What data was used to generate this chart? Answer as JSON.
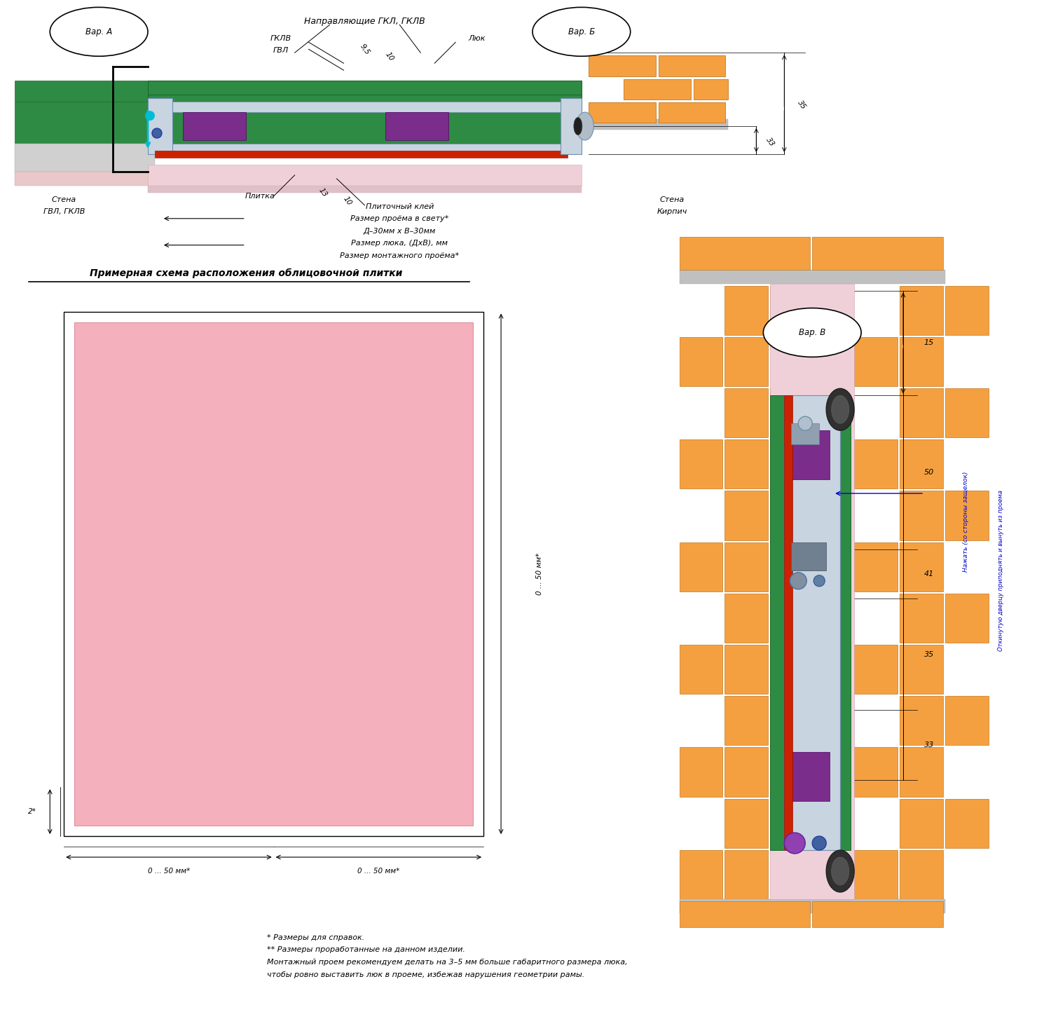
{
  "bg_color": "#ffffff",
  "title_text": "Примерная схема расположения облицовочной плитки",
  "var_A": "Вар. А",
  "var_B": "Вар. Б",
  "var_V": "Вар. В",
  "label_napravl": "Направляющие ГКЛ, ГКЛВ",
  "label_gklv": "ГКЛВ",
  "label_gvl": "ГВЛ",
  "label_lyuk": "Люк",
  "label_stena_gvl1": "Стена",
  "label_stena_gvl2": "ГВЛ, ГКЛВ",
  "label_plitka": "Плитка",
  "label_plitochny": "Плиточный клей",
  "label_razmer_proema": "Размер проёма в свету*",
  "label_d_minus": "Д–30мм х В–30мм",
  "label_razmer_lyuka": "Размер люка, (ДхВ), мм",
  "label_razmer_montazh": "Размер монтажного проёма*",
  "label_stena_kirpich1": "Стена",
  "label_stena_kirpich2": "Кирпич",
  "note1": "* Размеры для справок.",
  "note2": "** Размеры проработанные на данном изделии.",
  "note3": "Монтажный проем рекомендуем делать на 3–5 мм больше габаритного размера люка,",
  "note4": "чтобы ровно выставить люк в проеме, избежав нарушения геометрии рамы.",
  "dim_9_5": "9,5",
  "dim_10a": "10",
  "dim_13": "13",
  "dim_10b": "10",
  "dim_33": "33",
  "dim_35": "35",
  "dim_15": "15",
  "dim_50": "50",
  "dim_41": "41",
  "dim_35b": "35",
  "dim_33b": "33",
  "dim_2": "2*",
  "dim_0_50_1": "0 ... 50 мм*",
  "dim_0_50_2": "0 ... 50 мм*",
  "dim_0_50_v": "0 ... 50 мм*",
  "label_nozhat": "Нажать (со стороны защелок)",
  "label_otkinut": "Откинутую дверцу приподнять и вынуть из проема",
  "green_color": "#2e8b44",
  "pink_color": "#f4b0bc",
  "pink_light": "#fce4e8",
  "orange_color": "#f5a623",
  "purple_color": "#7b2d8b",
  "red_color": "#cc2200",
  "cyan_color": "#00bcd4",
  "gray_color": "#888888",
  "dark_color": "#222222",
  "blue_text": "#0000cc",
  "orange_brick": "#f5a040",
  "orange_brick_line": "#c07820"
}
